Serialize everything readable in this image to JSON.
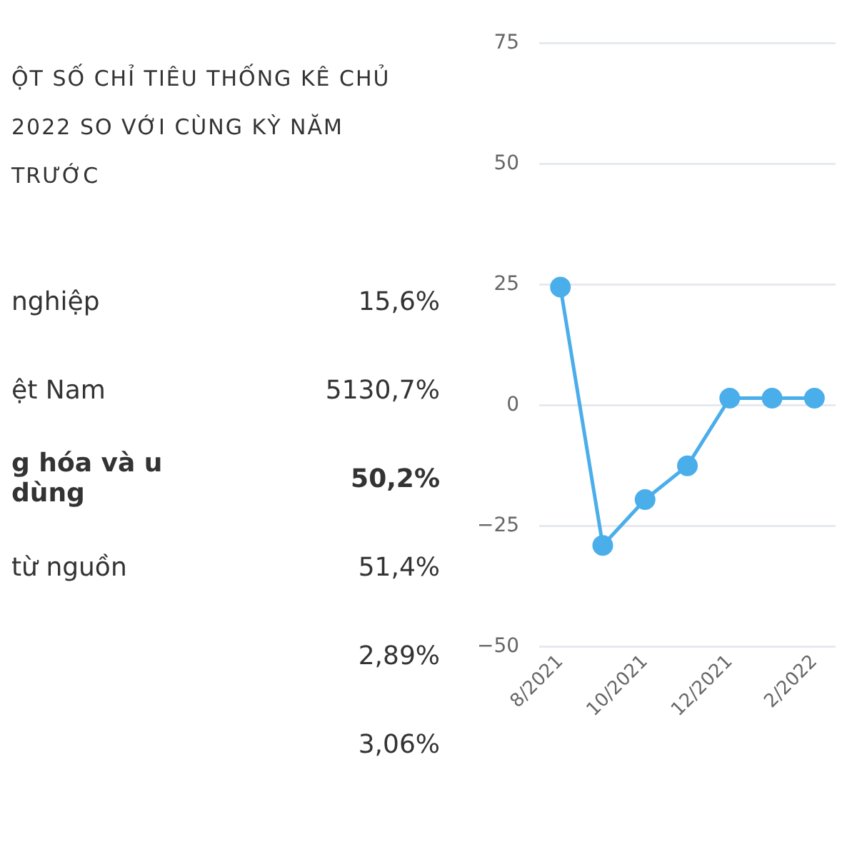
{
  "chart_data": [
    {
      "type": "other",
      "title": "ỘT SỐ CHỈ TIÊU THỐNG KÊ CHỦ 2022 SO VỚI CÙNG KỲ NĂM TRƯỚC",
      "annotations": [
        "nghiệp",
        "15,6%",
        "ệt Nam",
        "5130,7%",
        "g hóa và u dùng",
        "50,2%",
        "từ nguồn",
        "51,4%",
        "2,89%",
        "3,06%"
      ]
    },
    {
      "type": "line",
      "categories": [
        "8/2021",
        null,
        "10/2021",
        null,
        "12/2021",
        null,
        "2/2022"
      ],
      "series": [
        {
          "color": "#4aaeea",
          "values": [
            24.5,
            -29,
            -19.5,
            -12.5,
            1.5,
            1.5,
            1.5
          ]
        }
      ],
      "ylim": [
        -50,
        75
      ],
      "yticks": [
        -50,
        -25,
        0,
        25,
        50,
        75
      ],
      "grid": "y",
      "legend": false,
      "marker": "circle",
      "line_style": "solid"
    }
  ]
}
